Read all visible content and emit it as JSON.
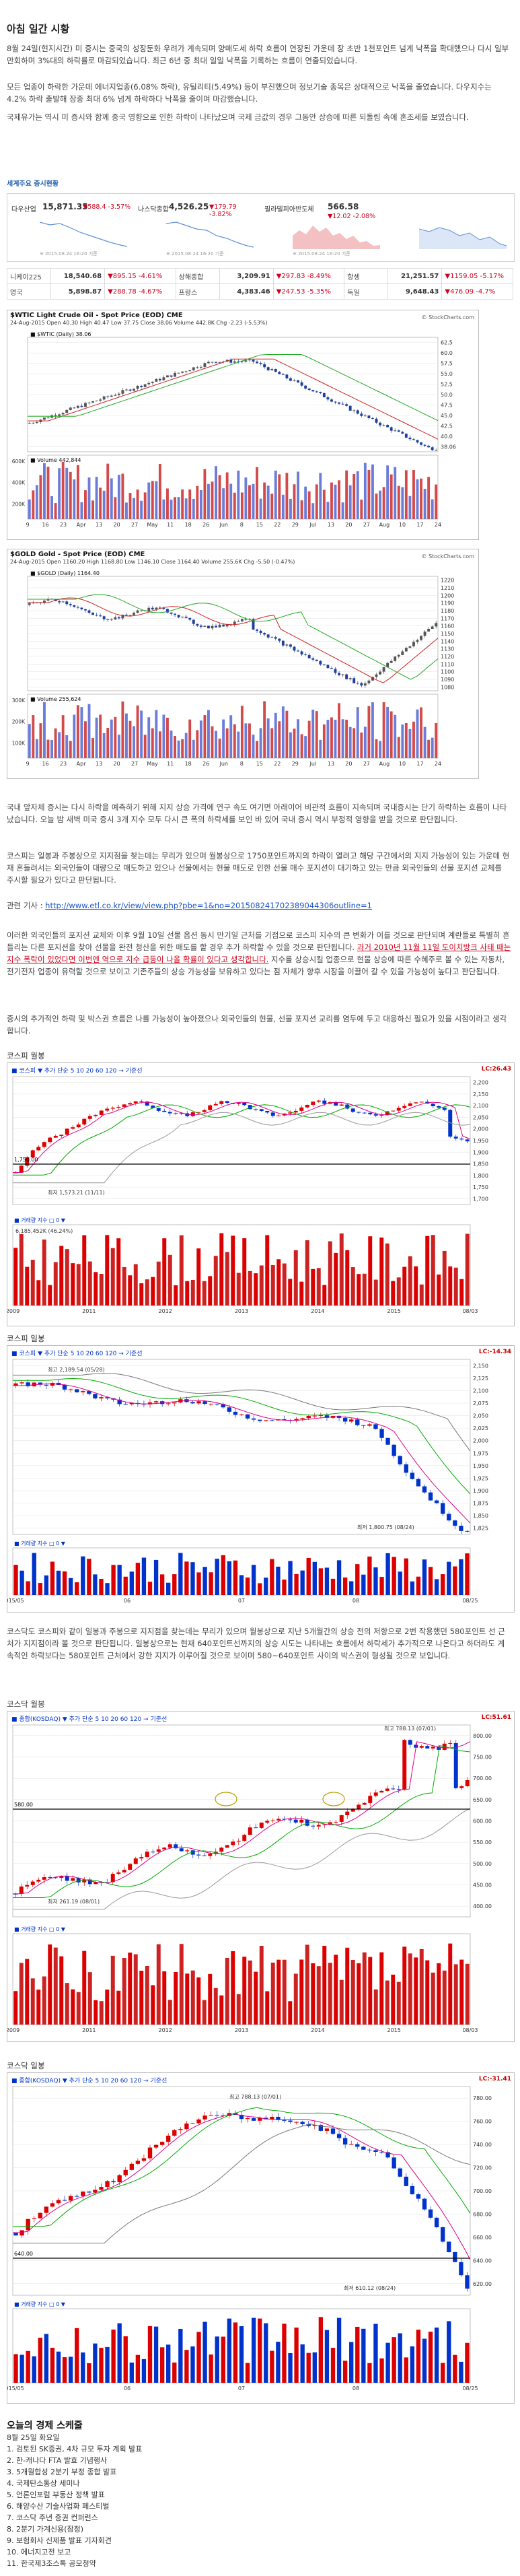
{
  "title": "아침 일간 시황",
  "intro": "8월 24일(현지시간) 미 증시는 중국의 성장둔화 우려가 계속되며 양매도세 하락 흐름이 연장된 가운데 장 초반 1천포인트 넘게 낙폭을 확대했으나 다시 일부 만회하며 3%대의 하락률로 마감되었습니다. 최근 6년 중 최대 일일 낙폭을 기록하는 흐름이 연출되었습니다.",
  "para2": "모든 업종이 하락한 가운데 에너지업종(6.08% 하락), 유틸리티(5.49%) 등이 부진했으며 정보기술 종목은 상대적으로 낙폭을 줄였습니다. 다우지수는 4.2% 하락 출발해 장중 최대 6% 넘게 하락하다 낙폭을 줄이며 마감했습니다.",
  "para3": "국제유가는 역시 미 증시와 함께 중국 영향으로 인한 하락이 나타났으며 국제 금값의 경우 그동안 상승에 따른 되돌림 속에 혼조세를 보였습니다.",
  "section_label": "세계주요 증시현황",
  "markets": [
    {
      "name": "다우산업",
      "value": "15,871.35",
      "change": "▼588.4 -3.57%",
      "caption": "※ 2015.08.24 16:20 기준"
    },
    {
      "name": "나스닥종합",
      "value": "4,526.25",
      "change": "▼179.79 -3.82%",
      "caption": "※ 2015.08.24 16:20 기준"
    },
    {
      "name": "필라델피아반도체",
      "value": "566.58",
      "change": "▼12.02 -2.08%",
      "caption": "※ 2015.08.24 16:20 기준"
    },
    {
      "name": "",
      "value": "",
      "change": "",
      "caption": ""
    }
  ],
  "world_table": [
    [
      "니케이225",
      "18,540.68",
      "▼895.15 -4.61%",
      "상해종합",
      "3,209.91",
      "▼297.83 -8.49%",
      "항셍",
      "21,251.57",
      "▼1159.05 -5.17%"
    ],
    [
      "영국",
      "5,898.87",
      "▼288.78 -4.67%",
      "프랑스",
      "4,383.46",
      "▼247.53 -5.35%",
      "독일",
      "9,648.43",
      "▼476.09 -4.7%"
    ]
  ],
  "wti_chart": {
    "head": "$WTIC Light Crude Oil - Spot Price (EOD) CME",
    "sub": "24-Aug-2015   Open 40.30  High 40.47  Low 37.75  Close 38.06  Volume 442.8K  Chg -2.23 (-5.53%)",
    "legend": "■ $WTIC (Daily) 38.06",
    "legend2": "■ Volume 442,844",
    "brand": "© StockCharts.com",
    "x_labels": [
      "9",
      "16",
      "23",
      "Apr",
      "13",
      "20",
      "27",
      "May",
      "11",
      "18",
      "26",
      "Jun",
      "8",
      "15",
      "22",
      "29",
      "Jul",
      "13",
      "20",
      "27",
      "Aug",
      "10",
      "17",
      "24"
    ],
    "y_labels": [
      "62.5",
      "60.0",
      "57.5",
      "55.0",
      "52.5",
      "50.0",
      "47.5",
      "45.0",
      "42.5",
      "40.0",
      "38.06"
    ],
    "vol_labels": [
      "600K",
      "400K",
      "200K"
    ]
  },
  "gold_chart": {
    "head": "$GOLD Gold - Spot Price (EOD) CME",
    "sub": "24-Aug-2015   Open 1160.20  High 1168.80  Low 1146.10  Close 1164.40  Volume 255.6K  Chg -5.50 (-0.47%)",
    "legend": "■ $GOLD (Daily) 1164.40",
    "legend2": "■ Volume 255,624",
    "brand": "© StockCharts.com",
    "x_labels": [
      "9",
      "16",
      "23",
      "Apr",
      "13",
      "20",
      "27",
      "May",
      "11",
      "18",
      "26",
      "Jun",
      "8",
      "15",
      "22",
      "29",
      "Jul",
      "13",
      "20",
      "27",
      "Aug",
      "10",
      "17",
      "24"
    ],
    "y_labels": [
      "1220",
      "1210",
      "1200",
      "1190",
      "1180",
      "1170",
      "1160",
      "1150",
      "1140",
      "1130",
      "1120",
      "1110",
      "1100",
      "1090",
      "1080"
    ],
    "vol_labels": [
      "300K",
      "200K",
      "100K"
    ]
  },
  "para4": "국내 앞자체 증시는 다시 하락을 예측하기 위해 지지 상승 가격에 연구 속도 여기면 아래이어 비관적 흐름이 지속되며 국내증시는 단기 하락하는 흐름이 나타났습니다. 오늘 밤 새벽 미국 증시 3개 지수 모두 다시 큰 폭의 하락세를 보인 바 있어 국내 증시 역시 부정적 영향을 받을 것으로 판단됩니다.",
  "para5": "코스피는 일봉과 주봉상으로 지지점을 찾는데는 무리가 있으며 월봉상으로 1750포인트까지의 하락이 열려고 해당 구간에서의 지지 가능성이 있는 가운데 현재 흔들려서는 외국인들이 대량으로 매도하고 있으나 선물에서는 현물 매도로 인한 선물 매수 포지션이 대기하고 있는 만큼 외국인들의 선물 포지션 교체를 주시할 필요가 있다고 판단됩니다.",
  "related_prefix": "관련 기사 : ",
  "related_url": "http://www.etl.co.kr/view/view.php?pbe=1&no=201508241702389044306outline=1",
  "para6": "이러한 외국인들의 포지션 교체와 이후 9월 10일 선물 옵션 동시 만기일 근처를 기점으로 코스피 지수의 큰 변화가 이를 것으로 판단되며 계란들로 특별히 흔들리는 다른 포지션을 찾아 선물을 완전 청산을 위한 매도를 할 경우 추가 하락할 수 있을 것으로 판단됩니다.",
  "para6_red": "과거 2010년 11월 11일 도이치방크 사태 때는 지수 폭락이 있었다면 이번엔 역으로 지수 급등이 나올 확률이 있다고 생각합니다.",
  "para6_tail": " 지수를 상승시킬 업종으로 현물 상승에 따른 수혜주로 볼 수 있는 자동차, 전기전자 업종이 유력할 것으로 보이고 기존주들의 상승 가능성을 보유하고 있다는 점 자체가 향후 시장을 이끌어 갈 수 있을 가능성이 높다고 판단됩니다.",
  "para7": "증시의 추가적인 하락 및 박스권 흐름은 나를 가능성이 높아졌으나 외국인들의 현물, 선물 포지션 교리를 염두에 두고 대응하신 필요가 있을 시점이라고 생각합니다.",
  "kospi_monthly": {
    "label": "코스피 월봉",
    "caption": "■ 코스피 ▼ 추가 단순 5 10 20 60 120 → 기준선",
    "right": "LC:26.43",
    "level_left": "1,750.00",
    "note": "최저 1,573.21 (11/11)",
    "volume_label": "■ 거래량 지수 □ 0 ▼",
    "vol_note": "6,185,452K (46.24%)",
    "x_labels": [
      "2009",
      "2011",
      "2012",
      "2013",
      "2014",
      "2015",
      "08/03"
    ],
    "y_labels": [
      "2,200",
      "2,150",
      "2,100",
      "2,050",
      "2,000",
      "1,950",
      "1,900",
      "1,850",
      "1,800",
      "1,750",
      "1,700"
    ]
  },
  "kospi_daily": {
    "label": "코스피 일봉",
    "caption": "■ 코스피 ▼ 추가 단순 5 10 20 60 120 → 기준선",
    "right": "LC:-14.34",
    "note_top": "최고 2,189.54 (05/28)",
    "note_low": "최저 1,800.75 (08/24)",
    "volume_label": "■ 거래량 지수 □ 0 ▼",
    "x_labels": [
      "2015/05",
      "06",
      "07",
      "08",
      "08/25"
    ],
    "y_labels": [
      "2,150",
      "2,125",
      "2,100",
      "2,075",
      "2,050",
      "2,025",
      "2,000",
      "1,975",
      "1,950",
      "1,925",
      "1,900",
      "1,875",
      "1,850",
      "1,825"
    ]
  },
  "para8": "코스닥도 코스피와 같이 일봉과 주봉으로 지지점을 찾는데는 무리가 있으며 월봉상으로 지난 5개월간의 상승 전의 저항으로 2번 작용했던 580포인트 선 근처가 지지점이라 볼 것으로 판단됩니다. 일봉상으로는 현재 640포인트선까지의 상승 시도는 나타내는 흐름에서 하락세가 추가적으로 나온다고 하더라도 계속적인 하락보다는 580포인트 근처에서 강한 지지가 이루어질 것으로 보이며 580~640포인트 사이의 박스권이 형성될 것으로 보입니다.",
  "kosdaq_monthly": {
    "label": "코스닥 월봉",
    "caption": "■ 종합(KOSDAQ) ▼ 추가 단순 5 10 20 60 120 → 기준선",
    "right": "LC:51.61",
    "level_left": "580.00",
    "note_top": "최고 788.13 (07/01)",
    "note_low": "최저 261.19 (08/01)",
    "volume_label": "■ 거래량 지수 □ 0 ▼",
    "x_labels": [
      "2009",
      "2011",
      "2012",
      "2013",
      "2014",
      "2015",
      "08/03"
    ],
    "y_labels": [
      "800.00",
      "750.00",
      "700.00",
      "650.00",
      "600.00",
      "550.00",
      "500.00",
      "450.00",
      "400.00"
    ]
  },
  "kosdaq_daily": {
    "label": "코스닥 일봉",
    "caption": "■ 종합(KOSDAQ) ▼ 추가 단순 5 10 20 60 120 → 기준선",
    "right": "LC:-31.41",
    "level_left": "640.00",
    "note_top": "최고 788.13 (07/01)",
    "note_low": "최저 610.12 (08/24)",
    "volume_label": "■ 거래량 지수 □ 0 ▼",
    "x_labels": [
      "2015/05",
      "06",
      "07",
      "08",
      "08/25"
    ],
    "y_labels": [
      "780.00",
      "760.00",
      "740.00",
      "720.00",
      "700.00",
      "680.00",
      "660.00",
      "640.00",
      "620.00"
    ]
  },
  "schedule": {
    "heading": "오늘의 경제 스케줄",
    "date": "8월 25일 화요일",
    "items": [
      "1. 검토된 SK증권, 4차 규모 투자 계획 발표",
      "2. 한-캐나다 FTA 발효 기념행사",
      "3. 5개월합성 2분기 부정 종합 발표",
      "4. 국제탄소통상 세미나",
      "5. 언론인포럼 부동산 정책 발표",
      "6. 해양수산 기술사업화 페스티벌",
      "7. 코스닥 주년 증권 컨퍼런스",
      "8. 2분기 가계신용(잠정)",
      "9. 보험회사 신제품 발표 기자회견",
      "10. 에너지고전 보고",
      "11. 한국제3조스톡 공모청약"
    ]
  },
  "colors": {
    "red": "#d0021b",
    "blue": "#1a55c4",
    "candle_up": "#d00",
    "candle_down": "#0033cc"
  }
}
